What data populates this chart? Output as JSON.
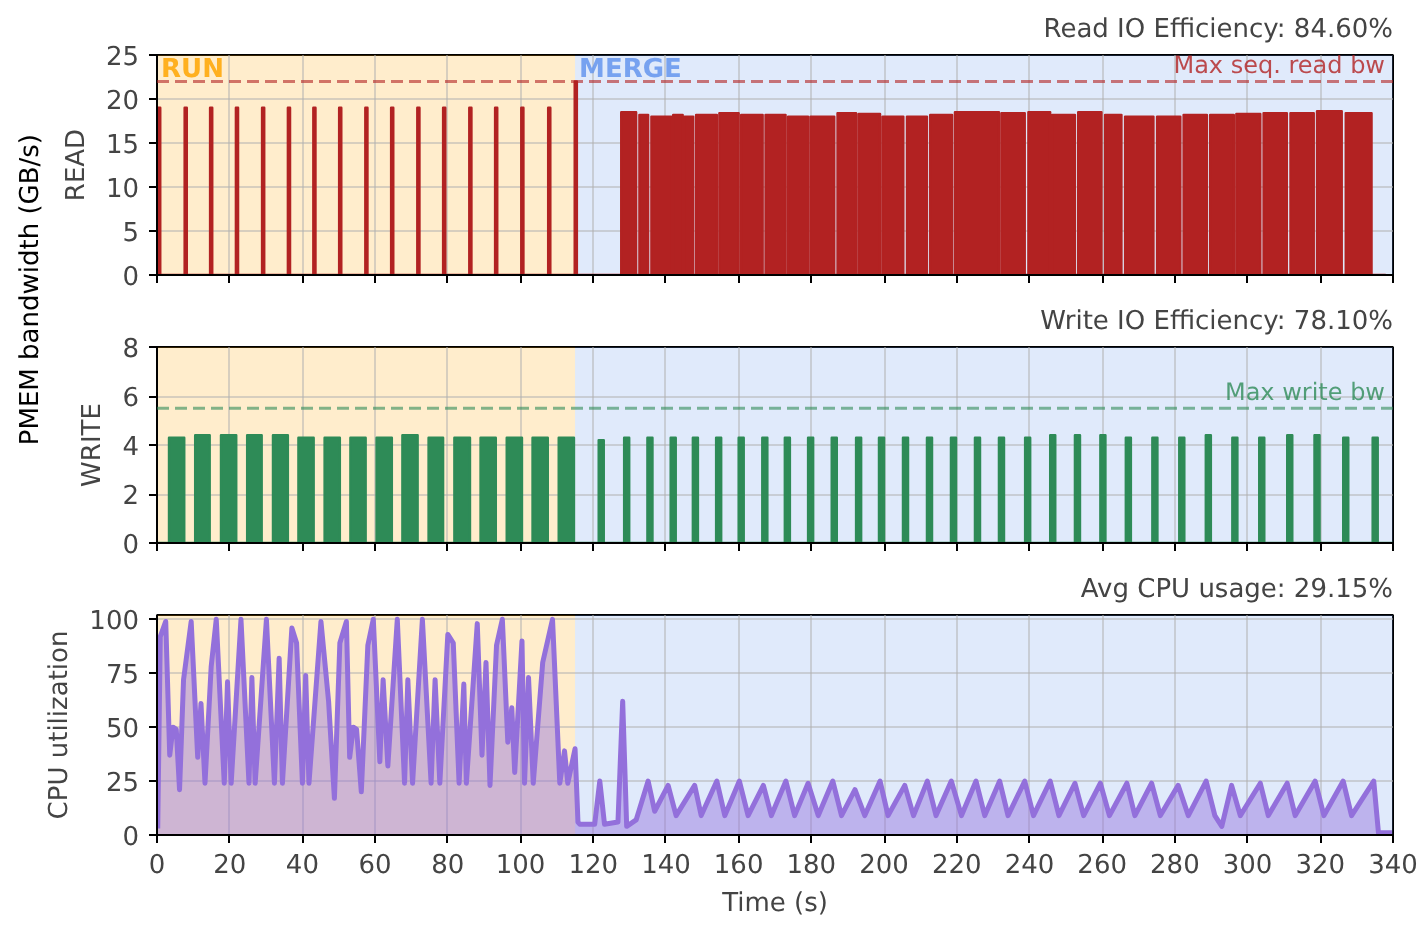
{
  "chart_data": [
    {
      "type": "area",
      "title": "Read IO Efficiency: 84.60%",
      "ylabel": "READ",
      "annotations": [
        "PMEM bandwidth (GB/s)"
      ],
      "xlim": [
        0,
        340
      ],
      "ylim": [
        0,
        25
      ],
      "xticks": [
        0,
        20,
        40,
        60,
        80,
        100,
        120,
        140,
        160,
        180,
        200,
        220,
        240,
        260,
        280,
        300,
        320,
        340
      ],
      "yticks": [
        0,
        5,
        10,
        15,
        20,
        25
      ],
      "tick_labels": "y",
      "grid": true,
      "bands": [
        {
          "axis": "x",
          "from": 0,
          "to": 115,
          "label": "RUN",
          "color": "#ffa500"
        },
        {
          "axis": "x",
          "from": 115,
          "to": 340,
          "label": "MERGE",
          "color": "#6495ed"
        }
      ],
      "ref_lines": [
        {
          "axis": "y",
          "value": 22,
          "label": "Max seq. read bw",
          "color": "#b22222",
          "line_style": "dashed"
        }
      ],
      "series": [
        {
          "color": "#b22222",
          "x": [
            0,
            0.3,
            0.3,
            0.9,
            0.9,
            7.6,
            7.6,
            8.2,
            8.2,
            14.6,
            14.6,
            15.2,
            15.2,
            21.7,
            21.7,
            22.3,
            22.3,
            28.9,
            28.9,
            29.5,
            29.5,
            36.0,
            36.0,
            36.6,
            36.6,
            43.0,
            43.0,
            43.6,
            43.6,
            50.1,
            50.1,
            50.7,
            50.7,
            57.3,
            57.3,
            57.9,
            57.9,
            64.4,
            64.4,
            65.0,
            65.0,
            71.6,
            71.6,
            72.2,
            72.2,
            78.7,
            78.7,
            79.3,
            79.3,
            85.9,
            85.9,
            86.5,
            86.5,
            93.0,
            93.0,
            93.6,
            93.6,
            100.2,
            100.2,
            100.8,
            100.8,
            107.6,
            107.6,
            108.2,
            108.2,
            114.9,
            114.9,
            115.5,
            115.5,
            127.7,
            127.7,
            131.8,
            131.8,
            132.7,
            132.7,
            135.1,
            135.1,
            136.0,
            136.0,
            141.5,
            141.5,
            142.0,
            142.0,
            144.6,
            144.6,
            145.1,
            145.1,
            147.5,
            147.5,
            148.3,
            148.3,
            154.0,
            154.0,
            154.7,
            154.7,
            160.0,
            160.0,
            160.7,
            160.7,
            166.6,
            166.6,
            167.4,
            167.4,
            172.9,
            172.9,
            173.6,
            173.6,
            179.1,
            179.1,
            179.8,
            179.8,
            186.3,
            186.3,
            187.2,
            187.2,
            192.3,
            192.3,
            193.0,
            193.0,
            198.9,
            198.9,
            199.6,
            199.6,
            205.3,
            205.3,
            206.3,
            206.3,
            211.8,
            211.8,
            212.7,
            212.7,
            218.7,
            218.7,
            219.5,
            219.5,
            231.6,
            231.6,
            232.3,
            232.3,
            238.7,
            238.7,
            239.7,
            239.7,
            245.7,
            245.7,
            246.3,
            246.3,
            252.5,
            252.5,
            253.4,
            253.4,
            259.8,
            259.8,
            260.8,
            260.8,
            265.3,
            265.3,
            266.3,
            266.3,
            274.1,
            274.1,
            275.1,
            275.1,
            281.5,
            281.5,
            282.4,
            282.4,
            288.8,
            288.8,
            289.7,
            289.7,
            296.2,
            296.2,
            296.9,
            296.9,
            303.5,
            303.5,
            304.4,
            304.4,
            310.8,
            310.8,
            311.8,
            311.8,
            318.2,
            318.2,
            319.1,
            319.1,
            325.9,
            325.9,
            327.0,
            327.0,
            334.1,
            334.1,
            338
          ],
          "values": [
            0,
            0,
            19,
            19,
            0,
            0,
            19,
            19,
            0,
            0,
            19,
            19,
            0,
            0,
            19,
            19,
            0,
            0,
            19,
            19,
            0,
            0,
            19,
            19,
            0,
            0,
            19,
            19,
            0,
            0,
            19,
            19,
            0,
            0,
            19,
            19,
            0,
            0,
            19,
            19,
            0,
            0,
            19,
            19,
            0,
            0,
            19,
            19,
            0,
            0,
            19,
            19,
            0,
            0,
            19,
            19,
            0,
            0,
            19,
            19,
            0,
            0,
            19,
            19,
            0,
            0,
            22,
            22,
            0,
            0,
            18.5,
            18.5,
            0,
            0,
            18.2,
            18.2,
            0,
            0,
            18.0,
            18.0,
            0,
            0,
            18.2,
            18.2,
            0,
            0,
            18.0,
            18.0,
            0,
            0,
            18.2,
            18.2,
            0,
            0,
            18.4,
            18.4,
            0,
            0,
            18.2,
            18.2,
            0,
            0,
            18.2,
            18.2,
            0,
            0,
            18.0,
            18.0,
            0,
            0,
            18.0,
            18.0,
            0,
            0,
            18.4,
            18.4,
            0,
            0,
            18.3,
            18.3,
            0,
            0,
            18.0,
            18.0,
            0,
            0,
            18.0,
            18.0,
            0,
            0,
            18.2,
            18.2,
            0,
            0,
            18.5,
            18.5,
            0,
            0,
            18.4,
            18.4,
            0,
            0,
            18.5,
            18.5,
            0,
            0,
            18.2,
            18.2,
            0,
            0,
            18.5,
            18.5,
            0,
            0,
            18.2,
            18.2,
            0,
            0,
            18.0,
            18.0,
            0,
            0,
            18.0,
            18.0,
            0,
            0,
            18.2,
            18.2,
            0,
            0,
            18.2,
            18.2,
            0,
            0,
            18.3,
            18.3,
            0,
            0,
            18.4,
            18.4,
            0,
            0,
            18.4,
            18.4,
            0,
            0,
            18.6,
            18.6,
            0,
            0,
            18.4,
            18.4,
            0,
            0
          ]
        }
      ]
    },
    {
      "type": "area",
      "title": "Write IO Efficiency: 78.10%",
      "ylabel": "WRITE",
      "xlim": [
        0,
        340
      ],
      "ylim": [
        0,
        8
      ],
      "xticks": [
        0,
        20,
        40,
        60,
        80,
        100,
        120,
        140,
        160,
        180,
        200,
        220,
        240,
        260,
        280,
        300,
        320,
        340
      ],
      "yticks": [
        0,
        2,
        4,
        6,
        8
      ],
      "tick_labels": "y",
      "grid": true,
      "bands": [
        {
          "axis": "x",
          "from": 0,
          "to": 115,
          "color": "#ffa500"
        },
        {
          "axis": "x",
          "from": 115,
          "to": 340,
          "color": "#6495ed"
        }
      ],
      "ref_lines": [
        {
          "axis": "y",
          "value": 5.5,
          "label": "Max write bw",
          "color": "#2e8b57",
          "line_style": "dashed"
        }
      ],
      "series": [
        {
          "color": "#2e8b57",
          "x": [
            0,
            3.3,
            3.3,
            7.5,
            7.5,
            10.5,
            10.5,
            14.5,
            14.5,
            17.6,
            17.6,
            21.8,
            21.8,
            24.8,
            24.8,
            28.8,
            28.8,
            31.9,
            31.9,
            36.0,
            36.0,
            38.9,
            38.9,
            43.1,
            43.1,
            46.1,
            46.1,
            50.3,
            50.3,
            53.2,
            53.2,
            57.4,
            57.4,
            60.4,
            60.4,
            64.6,
            64.6,
            67.5,
            67.5,
            71.7,
            71.7,
            74.7,
            74.7,
            78.7,
            78.7,
            81.8,
            81.8,
            86.1,
            86.1,
            89.0,
            89.0,
            93.2,
            93.2,
            96.2,
            96.2,
            100.4,
            100.4,
            103.3,
            103.3,
            107.5,
            107.5,
            110.5,
            110.5,
            114.7,
            114.7,
            121.5,
            121.5,
            122.9,
            122.9,
            128.5,
            128.5,
            129.9,
            129.9,
            134.9,
            134.9,
            136.3,
            136.3,
            141.3,
            141.3,
            142.7,
            142.7,
            147.4,
            147.4,
            148.8,
            148.8,
            153.8,
            153.8,
            155.2,
            155.2,
            160.0,
            160.0,
            161.4,
            161.4,
            166.5,
            166.5,
            167.9,
            167.9,
            172.7,
            172.7,
            174.1,
            174.1,
            179.1,
            179.1,
            180.5,
            180.5,
            185.6,
            185.6,
            187.0,
            187.0,
            192.3,
            192.3,
            193.7,
            193.7,
            198.6,
            198.6,
            200.0,
            200.0,
            205.2,
            205.2,
            206.6,
            206.6,
            211.8,
            211.8,
            213.2,
            213.2,
            218.4,
            218.4,
            219.8,
            219.8,
            225.0,
            225.0,
            226.4,
            226.4,
            231.6,
            231.6,
            233.0,
            233.0,
            238.8,
            238.8,
            240.2,
            240.2,
            245.7,
            245.7,
            247.1,
            247.1,
            252.5,
            252.5,
            253.9,
            253.9,
            259.5,
            259.5,
            260.9,
            260.9,
            266.5,
            266.5,
            267.9,
            267.9,
            273.8,
            273.8,
            275.2,
            275.2,
            281.2,
            281.2,
            282.6,
            282.6,
            288.5,
            288.5,
            289.9,
            289.9,
            295.8,
            295.8,
            297.2,
            297.2,
            303.2,
            303.2,
            304.6,
            304.6,
            310.9,
            310.9,
            312.3,
            312.3,
            318.4,
            318.4,
            319.8,
            319.8,
            326.3,
            326.3,
            327.7,
            327.7,
            334.4,
            334.4,
            335.8,
            335.8,
            340
          ],
          "values": [
            0,
            0,
            4.3,
            4.3,
            0,
            0,
            4.4,
            4.4,
            0,
            0,
            4.4,
            4.4,
            0,
            0,
            4.4,
            4.4,
            0,
            0,
            4.4,
            4.4,
            0,
            0,
            4.3,
            4.3,
            0,
            0,
            4.3,
            4.3,
            0,
            0,
            4.3,
            4.3,
            0,
            0,
            4.3,
            4.3,
            0,
            0,
            4.4,
            4.4,
            0,
            0,
            4.3,
            4.3,
            0,
            0,
            4.3,
            4.3,
            0,
            0,
            4.3,
            4.3,
            0,
            0,
            4.3,
            4.3,
            0,
            0,
            4.3,
            4.3,
            0,
            0,
            4.3,
            4.3,
            0,
            0,
            4.2,
            4.2,
            0,
            0,
            4.3,
            4.3,
            0,
            0,
            4.3,
            4.3,
            0,
            0,
            4.3,
            4.3,
            0,
            0,
            4.3,
            4.3,
            0,
            0,
            4.3,
            4.3,
            0,
            0,
            4.3,
            4.3,
            0,
            0,
            4.3,
            4.3,
            0,
            0,
            4.3,
            4.3,
            0,
            0,
            4.3,
            4.3,
            0,
            0,
            4.3,
            4.3,
            0,
            0,
            4.3,
            4.3,
            0,
            0,
            4.3,
            4.3,
            0,
            0,
            4.3,
            4.3,
            0,
            0,
            4.3,
            4.3,
            0,
            0,
            4.3,
            4.3,
            0,
            0,
            4.3,
            4.3,
            0,
            0,
            4.3,
            4.3,
            0,
            0,
            4.3,
            4.3,
            0,
            0,
            4.4,
            4.4,
            0,
            0,
            4.4,
            4.4,
            0,
            0,
            4.4,
            4.4,
            0,
            0,
            4.3,
            4.3,
            0,
            0,
            4.3,
            4.3,
            0,
            0,
            4.3,
            4.3,
            0,
            0,
            4.4,
            4.4,
            0,
            0,
            4.3,
            4.3,
            0,
            0,
            4.3,
            4.3,
            0,
            0,
            4.4,
            4.4,
            0,
            0,
            4.4,
            4.4,
            0,
            0,
            4.3,
            4.3,
            0,
            0,
            4.3,
            4.3,
            0,
            0
          ]
        }
      ]
    },
    {
      "type": "area",
      "title": "Avg CPU usage: 29.15%",
      "ylabel": "CPU utilization",
      "xlabel": "Time (s)",
      "xlim": [
        0,
        340
      ],
      "ylim": [
        0,
        102
      ],
      "xticks": [
        0,
        20,
        40,
        60,
        80,
        100,
        120,
        140,
        160,
        180,
        200,
        220,
        240,
        260,
        280,
        300,
        320,
        340
      ],
      "yticks": [
        0,
        25,
        50,
        75,
        100
      ],
      "grid": true,
      "bands": [
        {
          "axis": "x",
          "from": 0,
          "to": 115,
          "color": "#ffa500"
        },
        {
          "axis": "x",
          "from": 115,
          "to": 340,
          "color": "#6495ed"
        }
      ],
      "series": [
        {
          "color": "#9370db",
          "x": [
            0.2,
            0.9,
            2.4,
            3.5,
            4.4,
            5.3,
            6.2,
            7.3,
            9.4,
            11.2,
            12.1,
            13.2,
            14.9,
            16.3,
            18.5,
            19.4,
            20.4,
            23.1,
            25.3,
            26.1,
            27.0,
            30.1,
            32.3,
            33.6,
            34.5,
            37.1,
            38.4,
            40.0,
            40.9,
            41.8,
            45.1,
            47.2,
            48.8,
            50.3,
            52.1,
            53.0,
            54.0,
            54.9,
            56.2,
            58.0,
            59.5,
            61.3,
            62.2,
            63.5,
            66.1,
            68.1,
            69.0,
            70.3,
            73.0,
            75.4,
            76.5,
            77.8,
            80.0,
            81.5,
            83.1,
            84.4,
            85.1,
            88.1,
            89.4,
            90.5,
            91.6,
            93.4,
            95.0,
            96.5,
            97.6,
            98.4,
            100.4,
            101.1,
            102.2,
            103.5,
            106.1,
            108.8,
            110.8,
            112.1,
            113.0,
            115.0,
            115.8,
            116.3,
            120.4,
            121.8,
            123.1,
            126.8,
            128.1,
            129.2,
            131.8,
            135.1,
            136.9,
            140.6,
            142.8,
            147.9,
            149.7,
            154.0,
            156.2,
            160.2,
            162.6,
            166.8,
            169.0,
            173.0,
            175.4,
            179.1,
            181.9,
            185.9,
            188.3,
            192.0,
            194.7,
            198.9,
            201.1,
            205.7,
            208.1,
            211.9,
            214.3,
            218.5,
            221.3,
            225.3,
            227.7,
            231.8,
            234.1,
            238.7,
            241.1,
            245.7,
            248.1,
            252.5,
            254.9,
            259.5,
            262.0,
            266.8,
            269.0,
            273.6,
            276.0,
            280.9,
            283.7,
            288.6,
            291.0,
            292.9,
            295.6,
            298.0,
            303.5,
            305.7,
            310.9,
            313.1,
            318.6,
            321.0,
            326.3,
            328.6,
            334.7,
            336.0,
            339.7
          ],
          "values": [
            3,
            92,
            99,
            37,
            50,
            49,
            21,
            72,
            99,
            36,
            61,
            24,
            78,
            100,
            24,
            71,
            24,
            100,
            24,
            73,
            24,
            100,
            24,
            82,
            24,
            96,
            89,
            24,
            74,
            24,
            99,
            62,
            17,
            89,
            99,
            36,
            50,
            49,
            20,
            88,
            100,
            34,
            72,
            32,
            100,
            24,
            72,
            24,
            100,
            24,
            72,
            24,
            93,
            89,
            24,
            70,
            24,
            98,
            37,
            80,
            23,
            88,
            100,
            43,
            59,
            29,
            90,
            24,
            73,
            24,
            80,
            100,
            24,
            39,
            24,
            40,
            6,
            5,
            5,
            25,
            5,
            6,
            62,
            4,
            7,
            25,
            11,
            23,
            9,
            23,
            9,
            25,
            9,
            25,
            9,
            23,
            9,
            25,
            9,
            24,
            9,
            25,
            9,
            21,
            9,
            25,
            9,
            23,
            9,
            25,
            9,
            25,
            9,
            25,
            9,
            25,
            9,
            25,
            9,
            25,
            9,
            24,
            9,
            24,
            9,
            24,
            9,
            24,
            9,
            23,
            9,
            25,
            9,
            4,
            23,
            9,
            24,
            9,
            24,
            9,
            25,
            9,
            25,
            9,
            25,
            1,
            1
          ]
        }
      ]
    }
  ]
}
